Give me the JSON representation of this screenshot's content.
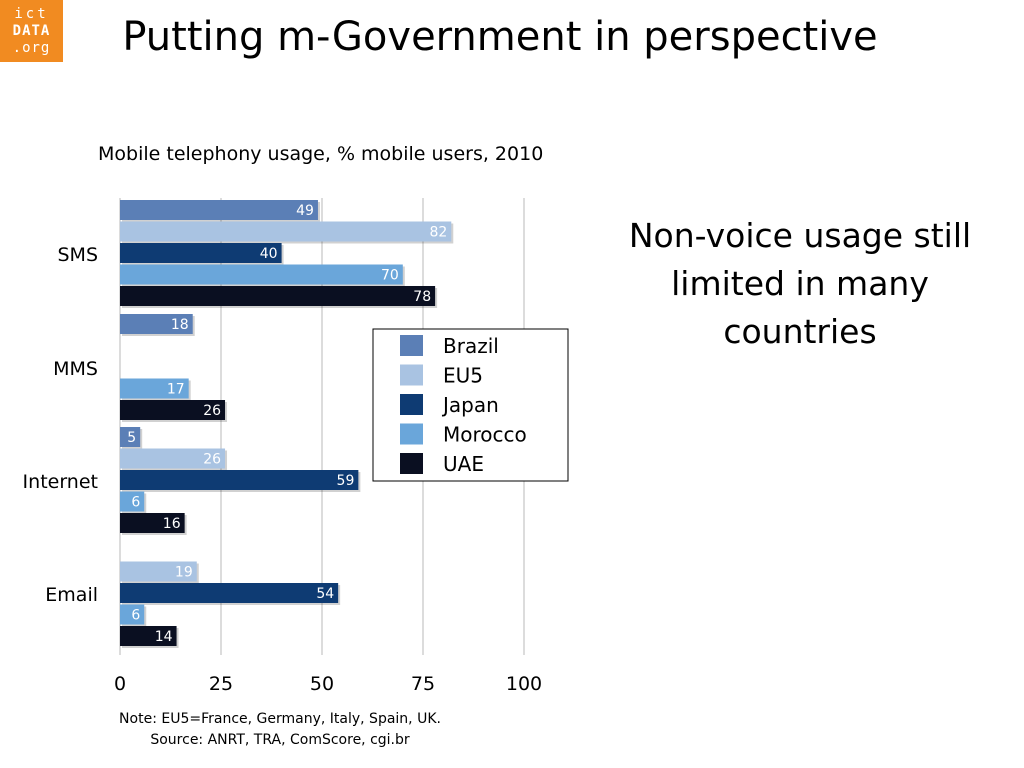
{
  "slide": {
    "title": "Putting m-Government in perspective",
    "side_text": "Non-voice usage still limited in many countries",
    "note_line1": "Note: EU5=France, Germany, Italy, Spain, UK.",
    "note_line2": "Source: ANRT, TRA, ComScore, cgi.br"
  },
  "logo": {
    "line1": "ict",
    "line2": "DATA",
    "line3": ".org"
  },
  "chart_data": {
    "type": "bar",
    "orientation": "horizontal",
    "title": "Mobile telephony usage, % mobile users, 2010",
    "categories": [
      "SMS",
      "MMS",
      "Internet",
      "Email"
    ],
    "series": [
      {
        "name": "Brazil",
        "color": "#5b7fb6",
        "values": [
          49,
          18,
          5,
          null
        ]
      },
      {
        "name": "EU5",
        "color": "#a9c3e2",
        "values": [
          82,
          null,
          26,
          19
        ]
      },
      {
        "name": "Japan",
        "color": "#0e3b73",
        "values": [
          40,
          null,
          59,
          54
        ]
      },
      {
        "name": "Morocco",
        "color": "#6aa6da",
        "values": [
          70,
          17,
          6,
          6
        ]
      },
      {
        "name": "UAE",
        "color": "#0a0f21",
        "values": [
          78,
          26,
          16,
          14
        ]
      }
    ],
    "xlim": [
      0,
      100
    ],
    "xticks": [
      0,
      25,
      50,
      75,
      100
    ],
    "grid": true,
    "legend": "center-right"
  }
}
